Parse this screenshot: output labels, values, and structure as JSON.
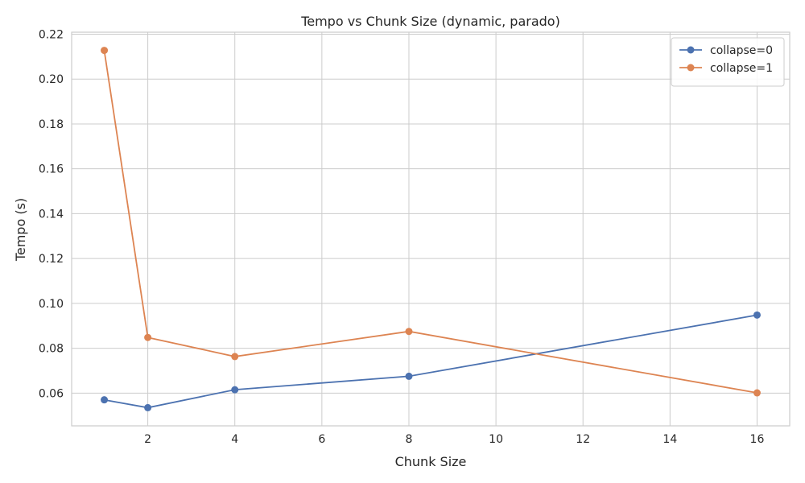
{
  "chart_data": {
    "type": "line",
    "title": "Tempo vs Chunk Size (dynamic, parado)",
    "xlabel": "Chunk Size",
    "ylabel": "Tempo (s)",
    "x": [
      1,
      2,
      4,
      8,
      16
    ],
    "series": [
      {
        "name": "collapse=0",
        "color": "#4c72b0",
        "values": [
          0.057,
          0.0535,
          0.0615,
          0.0675,
          0.0948
        ]
      },
      {
        "name": "collapse=1",
        "color": "#dd8452",
        "values": [
          0.2128,
          0.0848,
          0.0763,
          0.0875,
          0.0601
        ]
      }
    ],
    "xlim": [
      0.25,
      16.75
    ],
    "ylim": [
      0.0454,
      0.2209
    ],
    "xticks": [
      2,
      4,
      6,
      8,
      10,
      12,
      14,
      16
    ],
    "yticks": [
      0.06,
      0.08,
      0.1,
      0.12,
      0.14,
      0.16,
      0.18,
      0.2,
      0.22
    ],
    "xtick_labels": [
      "2",
      "4",
      "6",
      "8",
      "10",
      "12",
      "14",
      "16"
    ],
    "ytick_labels": [
      "0.06",
      "0.08",
      "0.10",
      "0.12",
      "0.14",
      "0.16",
      "0.18",
      "0.20",
      "0.22"
    ],
    "grid": true,
    "legend_position": "top-right",
    "colors": {
      "grid": "#cccccc",
      "spine": "#cccccc",
      "text": "#262626"
    }
  }
}
